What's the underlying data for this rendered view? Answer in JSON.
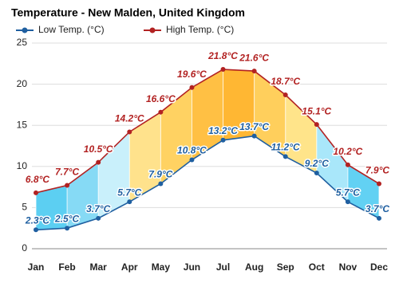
{
  "chart_data": {
    "type": "line",
    "title": "Temperature - New Malden, United Kingdom",
    "categories": [
      "Jan",
      "Feb",
      "Mar",
      "Apr",
      "May",
      "Jun",
      "Jul",
      "Aug",
      "Sep",
      "Oct",
      "Nov",
      "Dec"
    ],
    "series": [
      {
        "name": "Low Temp. (°C)",
        "color": "#1f5fa0",
        "values": [
          2.3,
          2.5,
          3.7,
          5.7,
          7.9,
          10.8,
          13.2,
          13.7,
          11.2,
          9.2,
          5.7,
          3.7
        ],
        "value_labels": [
          "2.3°C",
          "2.5°C",
          "3.7°C",
          "5.7°C",
          "7.9°C",
          "10.8°C",
          "13.2°C",
          "13.7°C",
          "11.2°C",
          "9.2°C",
          "5.7°C",
          "3.7°C"
        ]
      },
      {
        "name": "High Temp. (°C)",
        "color": "#b22222",
        "values": [
          6.8,
          7.7,
          10.5,
          14.2,
          16.6,
          19.6,
          21.8,
          21.6,
          18.7,
          15.1,
          10.2,
          7.9
        ],
        "value_labels": [
          "6.8°C",
          "7.7°C",
          "10.5°C",
          "14.2°C",
          "16.6°C",
          "19.6°C",
          "21.8°C",
          "21.6°C",
          "18.7°C",
          "15.1°C",
          "10.2°C",
          "7.9°C"
        ]
      }
    ],
    "fill_colors": [
      "#5ccff2",
      "#86daf5",
      "#c9f0fb",
      "#ffe28c",
      "#ffd262",
      "#ffc044",
      "#ffb733",
      "#ffcf5c",
      "#ffe48a",
      "#a9e7fa",
      "#62d1f3"
    ],
    "ylim": [
      0,
      25
    ],
    "yticks": [
      0,
      5,
      10,
      15,
      20,
      25
    ],
    "grid": true
  }
}
